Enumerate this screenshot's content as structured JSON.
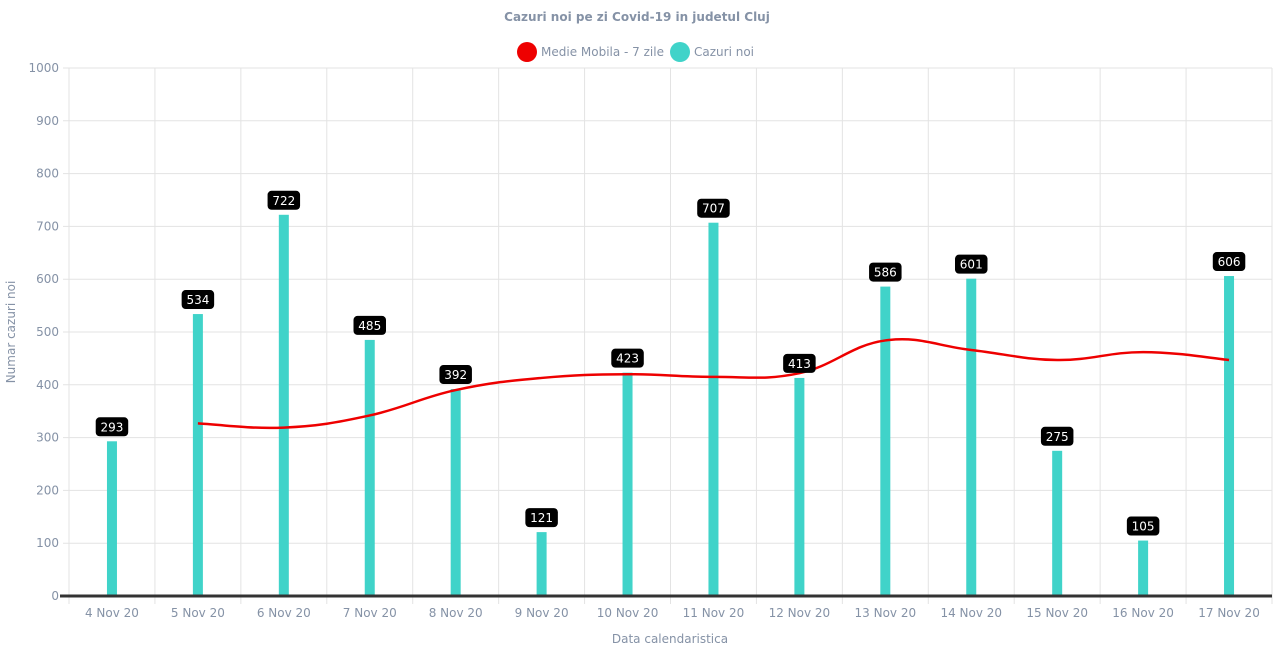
{
  "chart_data": {
    "type": "bar",
    "title": "Cazuri noi pe zi Covid-19 in judetul Cluj",
    "xlabel": "Data calendaristica",
    "ylabel": "Numar cazuri noi",
    "ylim": [
      0,
      1000
    ],
    "yticks": [
      0,
      100,
      200,
      300,
      400,
      500,
      600,
      700,
      800,
      900,
      1000
    ],
    "categories": [
      "4 Nov 20",
      "5 Nov 20",
      "6 Nov 20",
      "7 Nov 20",
      "8 Nov 20",
      "9 Nov 20",
      "10 Nov 20",
      "11 Nov 20",
      "12 Nov 20",
      "13 Nov 20",
      "14 Nov 20",
      "15 Nov 20",
      "16 Nov 20",
      "17 Nov 20"
    ],
    "legend_position": "top",
    "grid": true,
    "series": [
      {
        "name": "Medie Mobila - 7 zile",
        "type": "line",
        "color": "#ee0000",
        "values": [
          null,
          327,
          319,
          342,
          390,
          413,
          420,
          415,
          422,
          484,
          466,
          447,
          462,
          447
        ]
      },
      {
        "name": "Cazuri noi",
        "type": "bar",
        "color": "#40d3c9",
        "values": [
          293,
          534,
          722,
          485,
          392,
          121,
          423,
          707,
          413,
          586,
          601,
          275,
          105,
          606
        ],
        "data_labels": true
      }
    ]
  }
}
